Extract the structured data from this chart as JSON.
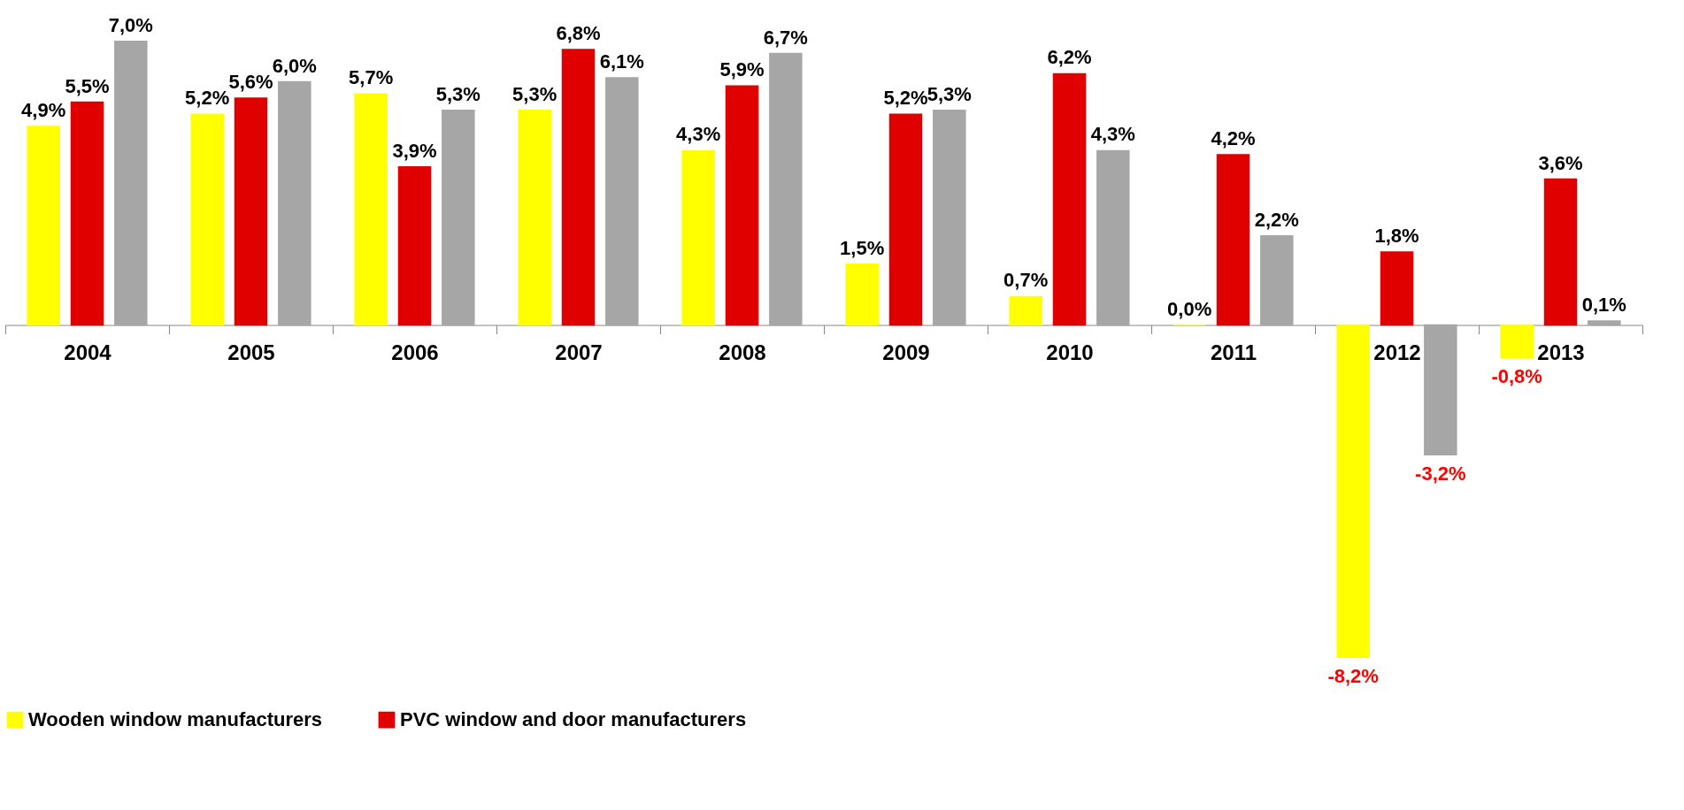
{
  "chart_data": {
    "type": "bar",
    "categories": [
      "2004",
      "2005",
      "2006",
      "2007",
      "2008",
      "2009",
      "2010",
      "2011",
      "2012",
      "2013"
    ],
    "series": [
      {
        "name": "Wooden window manufacturers",
        "color": "#ffff00",
        "values": [
          4.9,
          5.2,
          5.7,
          5.3,
          4.3,
          1.5,
          0.7,
          0.0,
          -8.2,
          -0.8
        ],
        "value_labels": [
          "4,9%",
          "5,2%",
          "5,7%",
          "5,3%",
          "4,3%",
          "1,5%",
          "0,7%",
          "0,0%",
          "-8,2%",
          "-0,8%"
        ]
      },
      {
        "name": "PVC window and door manufacturers",
        "color": "#e00000",
        "values": [
          5.5,
          5.6,
          3.9,
          6.8,
          5.9,
          5.2,
          6.2,
          4.2,
          1.8,
          3.6
        ],
        "value_labels": [
          "5,5%",
          "5,6%",
          "3,9%",
          "6,8%",
          "5,9%",
          "5,2%",
          "6,2%",
          "4,2%",
          "1,8%",
          "3,6%"
        ]
      },
      {
        "color": "#a6a6a6",
        "values": [
          7.0,
          6.0,
          5.3,
          6.1,
          6.7,
          5.3,
          4.3,
          2.2,
          -3.2,
          0.1
        ],
        "value_labels": [
          "7,0%",
          "6,0%",
          "5,3%",
          "6,1%",
          "6,7%",
          "5,3%",
          "4,3%",
          "2,2%",
          "-3,2%",
          "0,1%"
        ]
      }
    ],
    "legend": "bottom",
    "grid": false
  }
}
